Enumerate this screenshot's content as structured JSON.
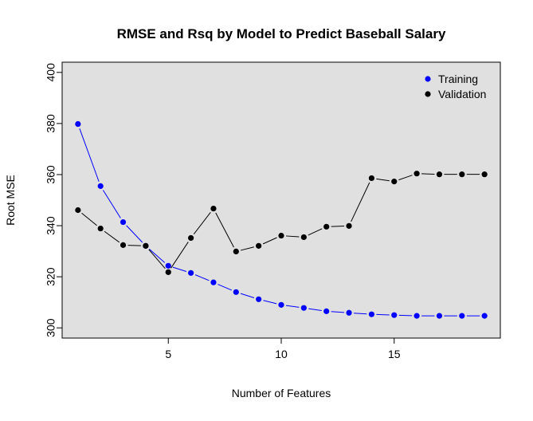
{
  "chart_data": {
    "type": "line",
    "title": "RMSE and Rsq by Model to Predict Baseball Salary",
    "xlabel": "Number of Features",
    "ylabel": "Root MSE",
    "xlim": [
      0.3,
      19.7
    ],
    "ylim": [
      296,
      404
    ],
    "xticks": [
      5,
      10,
      15
    ],
    "yticks": [
      300,
      320,
      340,
      360,
      380,
      400
    ],
    "grid": false,
    "background": "#e0e0e0",
    "legend_position": "top-right",
    "x": [
      1,
      2,
      3,
      4,
      5,
      6,
      7,
      8,
      9,
      10,
      11,
      12,
      13,
      14,
      15,
      16,
      17,
      18,
      19
    ],
    "series": [
      {
        "name": "Training",
        "color": "#0000ff",
        "values": [
          379.8,
          355.5,
          341.4,
          332.1,
          324.3,
          321.5,
          317.8,
          314.0,
          311.2,
          309.0,
          307.8,
          306.5,
          305.9,
          305.3,
          305.0,
          304.7,
          304.7,
          304.7,
          304.7
        ]
      },
      {
        "name": "Validation",
        "color": "#000000",
        "values": [
          346.1,
          338.9,
          332.4,
          332.1,
          321.8,
          335.2,
          346.7,
          329.9,
          332.1,
          336.1,
          335.5,
          339.6,
          339.9,
          358.6,
          357.3,
          360.4,
          360.1,
          360.1,
          360.1
        ]
      }
    ]
  }
}
